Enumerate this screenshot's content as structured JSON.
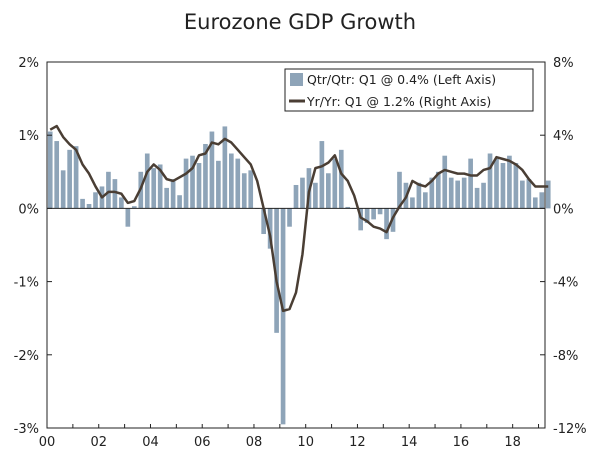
{
  "chart_data": {
    "type": "bar+line",
    "title": "Eurozone GDP Growth",
    "x_tick_labels": [
      "00",
      "02",
      "04",
      "06",
      "08",
      "10",
      "12",
      "14",
      "16",
      "18"
    ],
    "x_range": [
      2000,
      2019.25
    ],
    "left_axis": {
      "range": [
        -3,
        2
      ],
      "ticks": [
        2,
        1,
        0,
        -1,
        -2,
        -3
      ],
      "tick_labels": [
        "2%",
        "1%",
        "0%",
        "-1%",
        "-2%",
        "-3%"
      ]
    },
    "right_axis": {
      "range": [
        -12,
        8
      ],
      "ticks": [
        8,
        4,
        0,
        -4,
        -8,
        -12
      ],
      "tick_labels": [
        "8%",
        "4%",
        "0%",
        "-4%",
        "-8%",
        "-12%"
      ]
    },
    "legend": {
      "position": "top-right",
      "bar_label": "Qtr/Qtr: Q1 @ 0.4% (Left Axis)",
      "line_label": "Yr/Yr: Q1 @ 1.2% (Right Axis)"
    },
    "colors": {
      "bar": "#8ea4b8",
      "line": "#4a3e34",
      "axis": "#222222"
    },
    "start_year": 2000,
    "series": [
      {
        "name": "Qtr/Qtr: Q1 @ 0.4% (Left Axis)",
        "axis": "left",
        "type": "bar",
        "values": [
          1.05,
          0.92,
          0.52,
          0.8,
          0.85,
          0.13,
          0.06,
          0.22,
          0.3,
          0.5,
          0.4,
          0.15,
          -0.25,
          0.03,
          0.5,
          0.75,
          0.55,
          0.6,
          0.28,
          0.4,
          0.18,
          0.68,
          0.72,
          0.62,
          0.88,
          1.05,
          0.65,
          1.12,
          0.75,
          0.68,
          0.48,
          0.52,
          0.0,
          -0.35,
          -0.55,
          -1.7,
          -2.95,
          -0.25,
          0.32,
          0.42,
          0.55,
          0.35,
          0.92,
          0.48,
          0.68,
          0.8,
          0.02,
          0.0,
          -0.3,
          -0.2,
          -0.15,
          -0.08,
          -0.42,
          -0.32,
          0.5,
          0.35,
          0.15,
          0.35,
          0.22,
          0.42,
          0.5,
          0.72,
          0.42,
          0.38,
          0.42,
          0.68,
          0.28,
          0.35,
          0.75,
          0.68,
          0.62,
          0.72,
          0.62,
          0.38,
          0.4,
          0.15,
          0.22,
          0.38
        ]
      },
      {
        "name": "Yr/Yr: Q1 @ 1.2% (Right Axis)",
        "axis": "right",
        "type": "line",
        "values": [
          4.3,
          4.5,
          3.9,
          3.5,
          3.2,
          2.4,
          1.9,
          1.2,
          0.6,
          0.9,
          0.9,
          0.8,
          0.3,
          0.4,
          1.1,
          2.0,
          2.4,
          2.1,
          1.6,
          1.5,
          1.7,
          1.9,
          2.2,
          2.9,
          3.0,
          3.6,
          3.5,
          3.8,
          3.6,
          3.2,
          2.8,
          2.4,
          1.5,
          0.0,
          -1.5,
          -4.0,
          -5.6,
          -5.5,
          -4.6,
          -2.5,
          0.9,
          2.2,
          2.3,
          2.5,
          2.9,
          1.9,
          1.5,
          0.7,
          -0.5,
          -0.7,
          -1.0,
          -1.1,
          -1.3,
          -0.5,
          0.1,
          0.6,
          1.5,
          1.3,
          1.2,
          1.5,
          1.9,
          2.1,
          2.0,
          1.9,
          1.9,
          1.8,
          1.8,
          2.1,
          2.2,
          2.8,
          2.7,
          2.6,
          2.4,
          2.1,
          1.6,
          1.2,
          1.2,
          1.2
        ]
      }
    ]
  }
}
